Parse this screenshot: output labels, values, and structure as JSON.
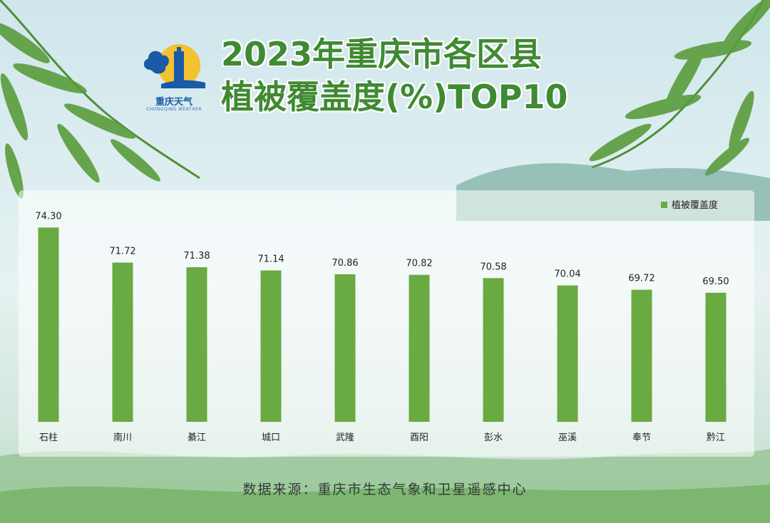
{
  "header": {
    "logo_text": "重庆天气",
    "logo_sub": "CHONGQING WEATHER",
    "title_line1": "2023年重庆市各区县",
    "title_line2": "植被覆盖度(%)TOP10"
  },
  "footer": {
    "source": "数据来源：重庆市生态气象和卫星遥感中心"
  },
  "colors": {
    "bar": "#6aaa42",
    "title": "#3f8a32",
    "logo_blue": "#1a5aa6",
    "logo_sun": "#f2c230"
  },
  "chart_data": {
    "type": "bar",
    "categories": [
      "石柱",
      "南川",
      "綦江",
      "城口",
      "武隆",
      "酉阳",
      "彭水",
      "巫溪",
      "奉节",
      "黔江"
    ],
    "series": [
      {
        "name": "植被覆盖度",
        "values": [
          74.3,
          71.72,
          71.38,
          71.14,
          70.86,
          70.82,
          70.58,
          70.04,
          69.72,
          69.5
        ]
      }
    ],
    "data_labels": [
      "74.30",
      "71.72",
      "71.38",
      "71.14",
      "70.86",
      "70.82",
      "70.58",
      "70.04",
      "69.72",
      "69.50"
    ],
    "ylim": [
      60,
      75
    ],
    "legend": "top-right",
    "grid": false
  }
}
